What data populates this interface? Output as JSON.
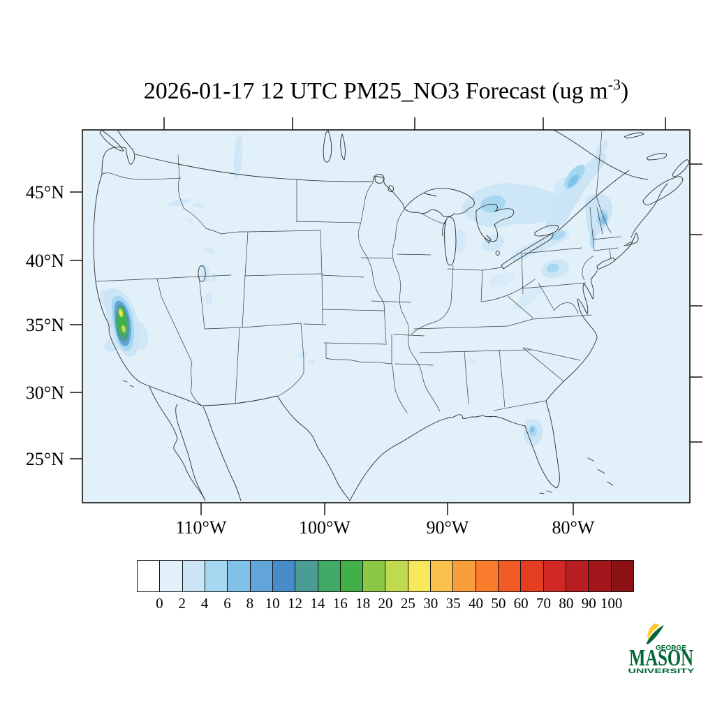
{
  "title": {
    "prefix": "2026-01-17 12 UTC PM25_NO3 Forecast (ug m",
    "exponent": "-3",
    "suffix": ")"
  },
  "map": {
    "lat_labels": [
      "45°N",
      "40°N",
      "35°N",
      "30°N",
      "25°N"
    ],
    "lon_labels": [
      "110°W",
      "100°W",
      "90°W",
      "80°W"
    ]
  },
  "colorbar": {
    "tick_labels": [
      "0",
      "2",
      "4",
      "6",
      "8",
      "10",
      "12",
      "14",
      "16",
      "18",
      "20",
      "25",
      "30",
      "35",
      "40",
      "50",
      "60",
      "70",
      "80",
      "90",
      "100"
    ],
    "colors": [
      "#ffffff",
      "#e2f0fa",
      "#cbe5f6",
      "#a6d7f1",
      "#81c1e8",
      "#62a6d9",
      "#478cc8",
      "#4a9c95",
      "#42aa67",
      "#40b047",
      "#8cc845",
      "#c0da4f",
      "#f8e85b",
      "#fac14d",
      "#f99e3d",
      "#f87c2b",
      "#f15c26",
      "#e43d21",
      "#d22823",
      "#b91e22",
      "#a3161b",
      "#8b1116"
    ]
  },
  "logo": {
    "line1": "GEORGE",
    "line2": "MASON",
    "line3": "UNIVERSITY",
    "green": "#006633",
    "gold": "#ffc72c"
  }
}
